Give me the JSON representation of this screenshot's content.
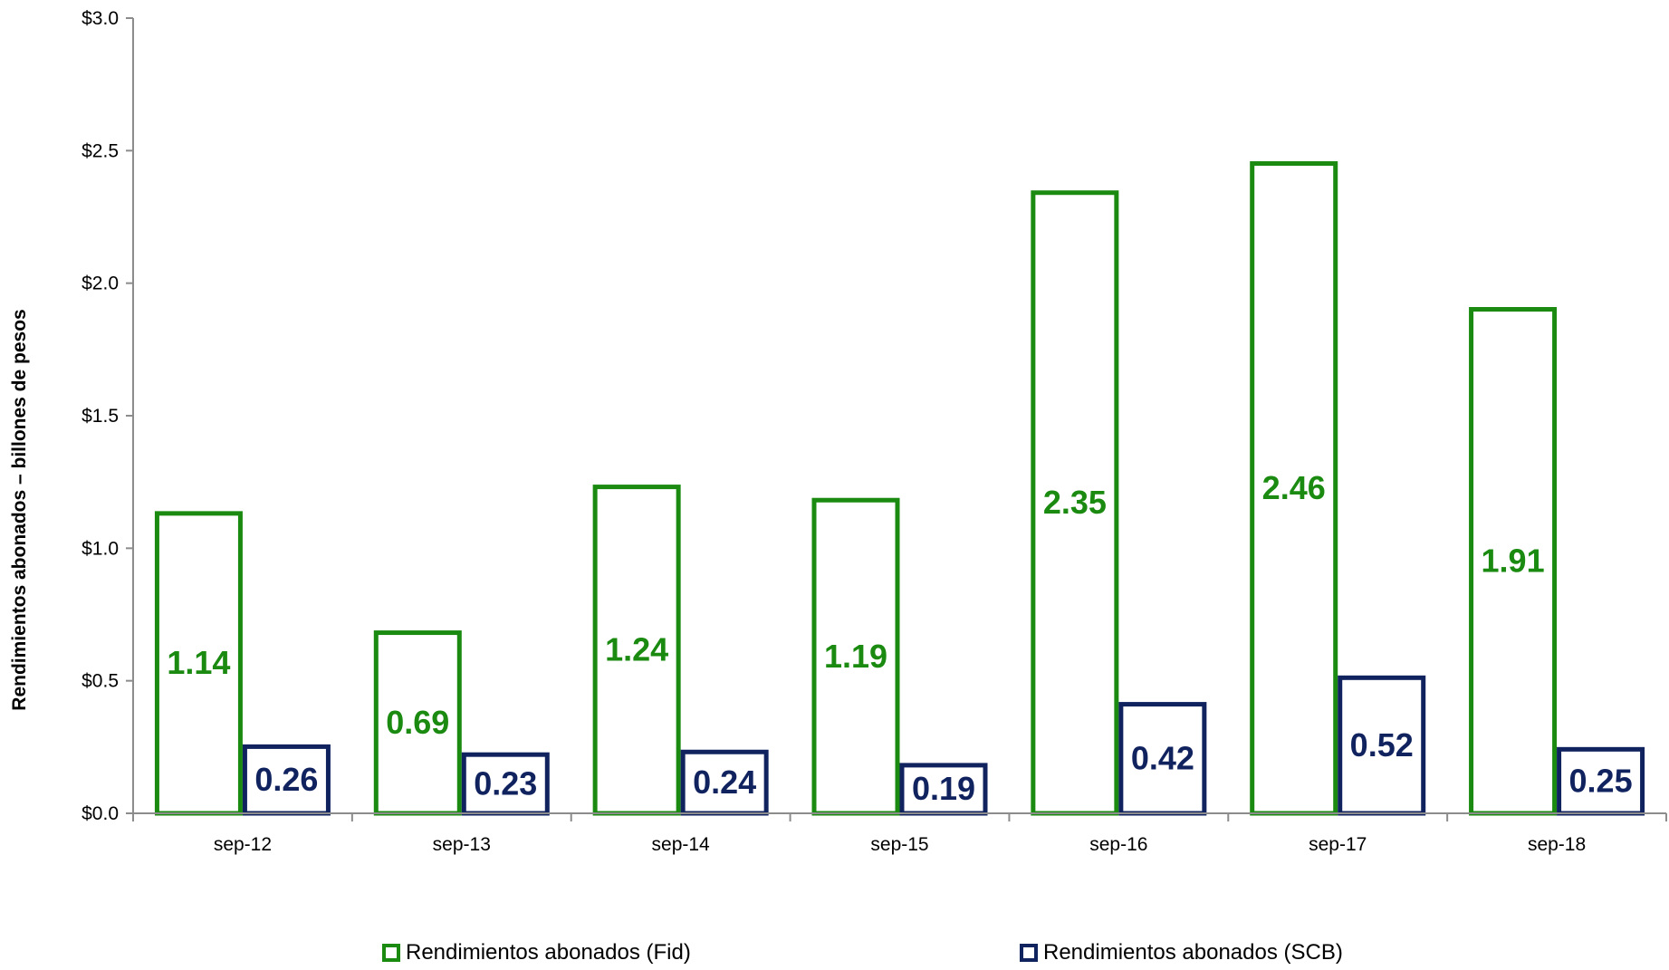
{
  "chart_data": {
    "type": "bar",
    "categories": [
      "sep-12",
      "sep-13",
      "sep-14",
      "sep-15",
      "sep-16",
      "sep-17",
      "sep-18"
    ],
    "series": [
      {
        "name": "Rendimientos abonados (Fid)",
        "values": [
          1.14,
          0.69,
          1.24,
          1.19,
          2.35,
          2.46,
          1.91
        ],
        "color": "#1a8a10",
        "labels": [
          "1.14",
          "0.69",
          "1.24",
          "1.19",
          "2.35",
          "2.46",
          "1.91"
        ]
      },
      {
        "name": "Rendimientos abonados (SCB)",
        "values": [
          0.26,
          0.23,
          0.24,
          0.19,
          0.42,
          0.52,
          0.25
        ],
        "color": "#10235f",
        "labels": [
          "0.26",
          "0.23",
          "0.24",
          "0.19",
          "0.42",
          "0.52",
          "0.25"
        ]
      }
    ],
    "ylabel": "Rendimientos abonados – billones de pesos",
    "ylim": [
      0,
      3.0
    ],
    "yticks": [
      0,
      0.5,
      1.0,
      1.5,
      2.0,
      2.5,
      3.0
    ],
    "ytick_labels": [
      "$0.0",
      "$0.5",
      "$1.0",
      "$1.5",
      "$2.0",
      "$2.5",
      "$3.0"
    ],
    "grid": false,
    "legend_position": "bottom"
  }
}
